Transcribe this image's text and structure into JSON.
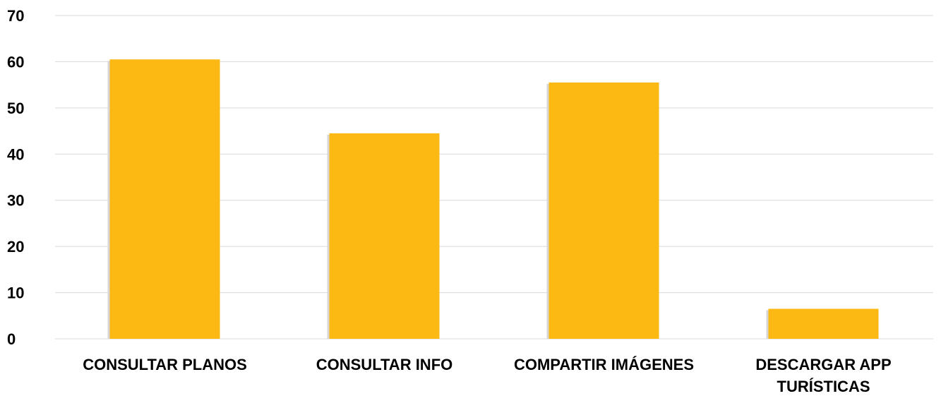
{
  "chart_data": {
    "type": "bar",
    "categories": [
      "CONSULTAR PLANOS",
      "CONSULTAR INFO",
      "COMPARTIR IMÁGENES",
      "DESCARGAR APP TURÍSTICAS"
    ],
    "category_lines": [
      [
        "CONSULTAR PLANOS"
      ],
      [
        "CONSULTAR INFO"
      ],
      [
        "COMPARTIR IMÁGENES"
      ],
      [
        "DESCARGAR APP",
        "TURÍSTICAS"
      ]
    ],
    "values": [
      60.5,
      44.5,
      55.5,
      6.5
    ],
    "title": "",
    "xlabel": "",
    "ylabel": "",
    "ylim": [
      0,
      70
    ],
    "yticks": [
      0,
      10,
      20,
      30,
      40,
      50,
      60,
      70
    ],
    "grid": true,
    "legend": "none",
    "bar_color": "#FDB913",
    "grid_color": "#D9D9D9"
  }
}
